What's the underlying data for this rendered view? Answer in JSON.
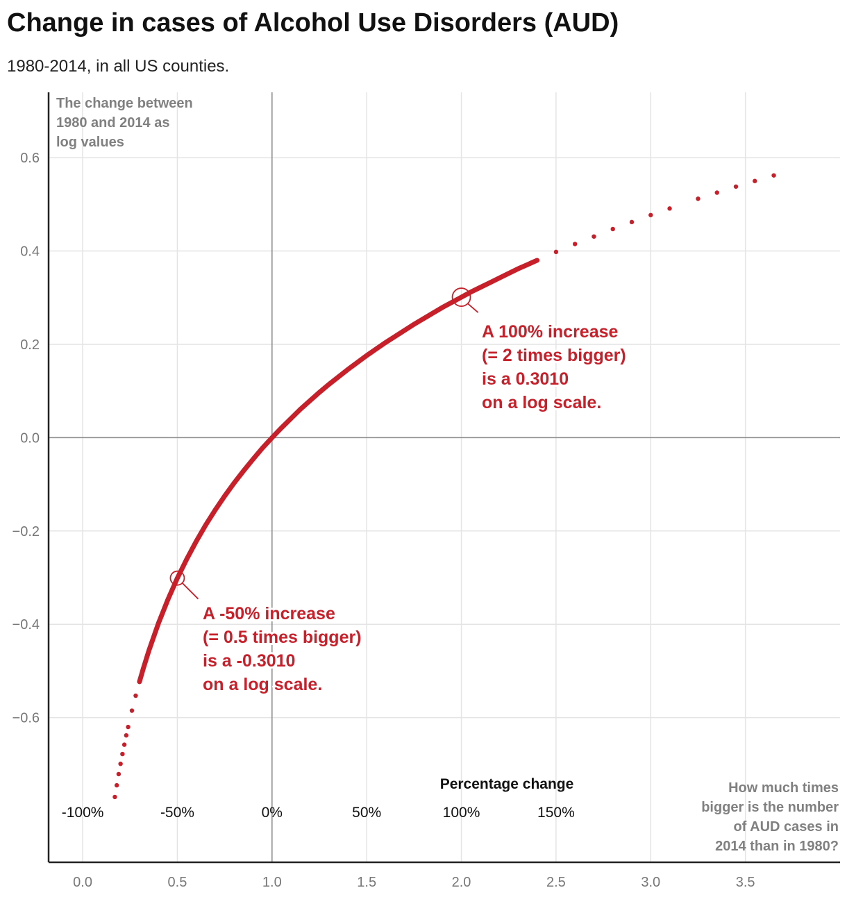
{
  "title": "Change in cases of Alcohol Use Disorders (AUD)",
  "subtitle": "1980-2014, in all US counties.",
  "chart_data": {
    "type": "scatter",
    "color": "#c8202a",
    "xlabel": "How much times bigger is the number of AUD cases in 2014 than in 1980?",
    "xlabel_lines": [
      "How much times",
      "bigger is the number",
      "of AUD cases in",
      "2014 than in 1980?"
    ],
    "ylabel_lines": [
      "The change between",
      "1980 and 2014 as",
      "log values"
    ],
    "xlim": [
      -0.18,
      4.0
    ],
    "ylim": [
      -0.91,
      0.74
    ],
    "grid": true,
    "x_ticks": [
      0.0,
      0.5,
      1.0,
      1.5,
      2.0,
      2.5,
      3.0,
      3.5
    ],
    "x_tick_labels": [
      "0.0",
      "0.5",
      "1.0",
      "1.5",
      "2.0",
      "2.5",
      "3.0",
      "3.5"
    ],
    "y_ticks": [
      0.6,
      0.4,
      0.2,
      0.0,
      -0.2,
      -0.4,
      -0.6
    ],
    "y_tick_labels": [
      "0.6",
      "0.4",
      "0.2",
      "0.0",
      "−0.2",
      "−0.4",
      "−0.6"
    ],
    "secondary_x_title": "Percentage change",
    "secondary_x_ticks": [
      0.0,
      0.5,
      1.0,
      1.5,
      2.0,
      2.5
    ],
    "secondary_x_labels": [
      "-100%",
      "-50%",
      "0%",
      "50%",
      "100%",
      "150%"
    ],
    "reference_lines": {
      "x": 1.0,
      "y": 0.0
    },
    "points": [
      [
        0.17,
        -0.77
      ],
      [
        0.18,
        -0.745
      ],
      [
        0.19,
        -0.721
      ],
      [
        0.2,
        -0.699
      ],
      [
        0.21,
        -0.678
      ],
      [
        0.22,
        -0.658
      ],
      [
        0.23,
        -0.638
      ],
      [
        0.24,
        -0.62
      ],
      [
        0.26,
        -0.585
      ],
      [
        0.28,
        -0.553
      ],
      [
        0.3,
        -0.523
      ],
      [
        0.32,
        -0.495
      ],
      [
        0.35,
        -0.456
      ],
      [
        0.4,
        -0.398
      ],
      [
        0.45,
        -0.347
      ],
      [
        0.5,
        -0.301
      ],
      [
        0.55,
        -0.26
      ],
      [
        0.6,
        -0.222
      ],
      [
        0.65,
        -0.187
      ],
      [
        0.7,
        -0.155
      ],
      [
        0.75,
        -0.125
      ],
      [
        0.8,
        -0.097
      ],
      [
        0.85,
        -0.071
      ],
      [
        0.9,
        -0.046
      ],
      [
        0.95,
        -0.022
      ],
      [
        1.0,
        0.0
      ],
      [
        1.05,
        0.021
      ],
      [
        1.1,
        0.041
      ],
      [
        1.15,
        0.061
      ],
      [
        1.2,
        0.079
      ],
      [
        1.25,
        0.097
      ],
      [
        1.3,
        0.114
      ],
      [
        1.35,
        0.13
      ],
      [
        1.4,
        0.146
      ],
      [
        1.45,
        0.161
      ],
      [
        1.5,
        0.176
      ],
      [
        1.55,
        0.19
      ],
      [
        1.6,
        0.204
      ],
      [
        1.65,
        0.217
      ],
      [
        1.7,
        0.23
      ],
      [
        1.75,
        0.243
      ],
      [
        1.8,
        0.255
      ],
      [
        1.85,
        0.267
      ],
      [
        1.9,
        0.279
      ],
      [
        1.95,
        0.29
      ],
      [
        2.0,
        0.301
      ],
      [
        2.05,
        0.312
      ],
      [
        2.1,
        0.322
      ],
      [
        2.15,
        0.332
      ],
      [
        2.2,
        0.342
      ],
      [
        2.25,
        0.352
      ],
      [
        2.3,
        0.362
      ],
      [
        2.35,
        0.371
      ],
      [
        2.4,
        0.38
      ],
      [
        2.5,
        0.398
      ],
      [
        2.6,
        0.415
      ],
      [
        2.7,
        0.431
      ],
      [
        2.8,
        0.447
      ],
      [
        2.9,
        0.462
      ],
      [
        3.0,
        0.477
      ],
      [
        3.1,
        0.491
      ],
      [
        3.25,
        0.512
      ],
      [
        3.35,
        0.525
      ],
      [
        3.45,
        0.538
      ],
      [
        3.55,
        0.55
      ],
      [
        3.65,
        0.562
      ]
    ],
    "annotations": [
      {
        "x": 2.0,
        "y": 0.301,
        "lines": [
          "A 100% increase",
          "(= 2 times bigger)",
          "is a 0.3010",
          "on a log scale."
        ]
      },
      {
        "x": 0.5,
        "y": -0.301,
        "lines": [
          "A -50% increase",
          "(= 0.5 times bigger)",
          "is a -0.3010",
          "on a log scale."
        ]
      }
    ]
  }
}
